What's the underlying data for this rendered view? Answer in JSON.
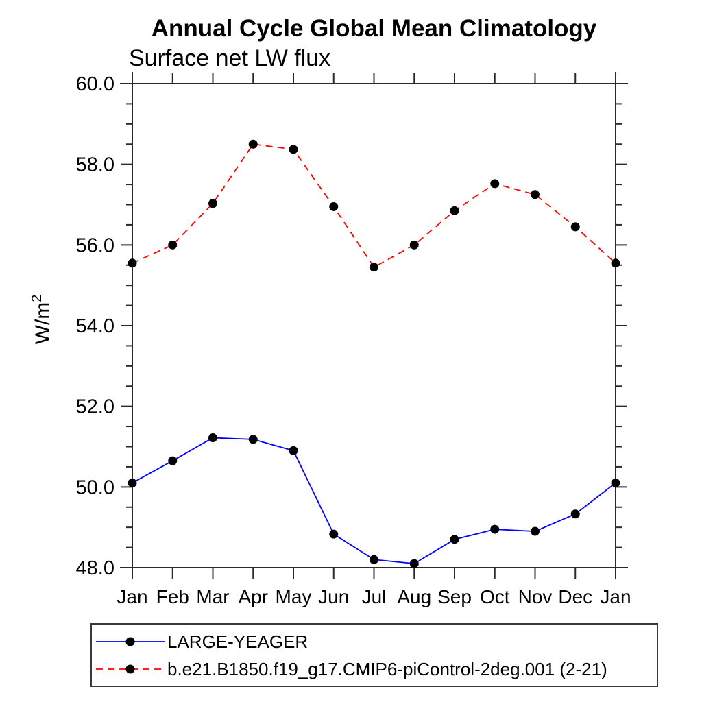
{
  "chart_data": {
    "type": "line",
    "title": "Annual Cycle Global Mean Climatology",
    "subtitle": "Surface net LW flux",
    "ylabel_base": "W/m",
    "ylabel_exponent": "2",
    "x_categories": [
      "Jan",
      "Feb",
      "Mar",
      "Apr",
      "May",
      "Jun",
      "Jul",
      "Aug",
      "Sep",
      "Oct",
      "Nov",
      "Dec",
      "Jan"
    ],
    "ylim": [
      48.0,
      60.0
    ],
    "ytick_major_step": 2.0,
    "ytick_minor_step": 0.5,
    "ytick_label_decimals": 1,
    "grid": false,
    "legend_position": "bottom-left-box",
    "axis_color": "#2a2a2a",
    "text_color": "#000000",
    "marker_color": "#000000",
    "series": [
      {
        "name": "LARGE-YEAGER",
        "color": "#0000ff",
        "line_style": "solid",
        "marker": "filled-circle",
        "values": [
          50.1,
          50.65,
          51.22,
          51.18,
          50.9,
          48.83,
          48.2,
          48.1,
          48.7,
          48.95,
          48.9,
          49.33,
          50.1
        ]
      },
      {
        "name": "b.e21.B1850.f19_g17.CMIP6-piControl-2deg.001 (2-21)",
        "color": "#ff0000",
        "line_style": "dashed",
        "marker": "filled-circle",
        "values": [
          55.55,
          56.0,
          57.03,
          58.5,
          58.37,
          56.95,
          55.45,
          56.0,
          56.85,
          57.52,
          57.25,
          56.45,
          55.55
        ]
      }
    ]
  }
}
